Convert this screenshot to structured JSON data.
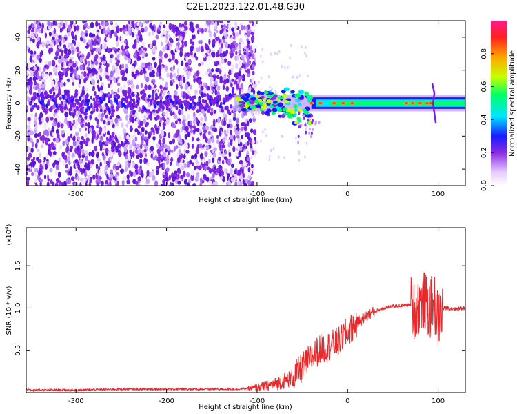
{
  "title": "C2E1.2023.122.01.48.G30",
  "colors": {
    "signal": "#e8282a",
    "noise": "#7a1fe6"
  },
  "chart_data": [
    {
      "type": "heatmap",
      "xlabel": "Height of straight line (km)",
      "ylabel": "Frequency (Hz)",
      "xlim": [
        -355,
        130
      ],
      "ylim": [
        -50,
        50
      ],
      "xticks": [
        -300,
        -200,
        -100,
        0,
        100
      ],
      "yticks": [
        -40,
        -20,
        0,
        20,
        40
      ],
      "colorbar": {
        "label": "Normalized spectral amplitude",
        "range": [
          0,
          1
        ],
        "ticks": [
          "0.0",
          "0.2",
          "0.4",
          "0.6",
          "0.8"
        ],
        "colors": [
          "#ffffff",
          "#e6ccff",
          "#8a2be2",
          "#1a1aff",
          "#00e5ff",
          "#00ff66",
          "#c8ff00",
          "#ffa500",
          "#ff2020",
          "#ff1a8c"
        ]
      },
      "features": {
        "noise_region_x": [
          -355,
          -110
        ],
        "trace_center_frequency": 0,
        "trace_start_x": -125,
        "trace_band_halfwidth_hz": 3,
        "spike_x": 95
      }
    },
    {
      "type": "line",
      "xlabel": "Height of straight line (km)",
      "ylabel": "SNR (10 * v/v)",
      "y_multiplier": "(x10",
      "y_multiplier_exp": "4",
      "xlim": [
        -355,
        130
      ],
      "ylim": [
        0,
        1.95
      ],
      "xticks": [
        -300,
        -200,
        -100,
        0,
        100
      ],
      "yticks": [
        0.5,
        1.0,
        1.5
      ],
      "series": [
        {
          "x": [
            -355,
            -300,
            -250,
            -200,
            -150,
            -120,
            -100,
            -80,
            -60,
            -50,
            -40,
            -30,
            -20,
            -10,
            0,
            10,
            20,
            30,
            40,
            50,
            60,
            70,
            75,
            80,
            85,
            90,
            95,
            100,
            105,
            110,
            120,
            130
          ],
          "y": [
            0.03,
            0.03,
            0.04,
            0.04,
            0.04,
            0.04,
            0.06,
            0.1,
            0.18,
            0.3,
            0.42,
            0.52,
            0.55,
            0.6,
            0.72,
            0.82,
            0.9,
            0.96,
            1.0,
            1.02,
            1.03,
            1.04,
            0.95,
            1.05,
            1.1,
            0.95,
            1.1,
            0.85,
            1.0,
            1.0,
            0.99,
            1.0
          ]
        }
      ]
    }
  ]
}
